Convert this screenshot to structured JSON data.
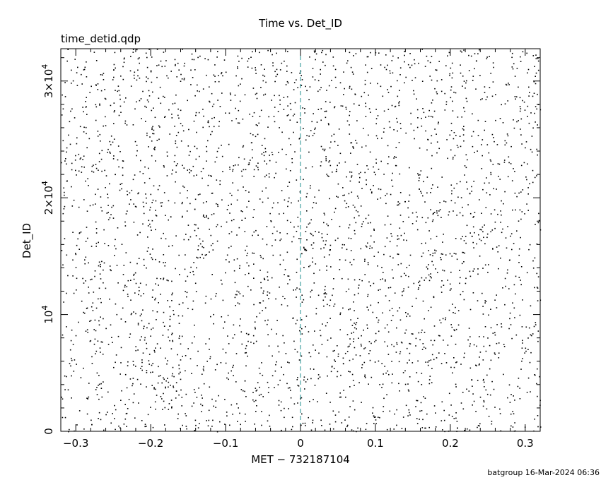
{
  "title": "Time vs. Det_ID",
  "subtitle": "time_detid.qdp",
  "footer": "batgroup 16-Mar-2024 06:36",
  "colors": {
    "points": "#000000",
    "marker_line": "#1f8f8f",
    "frame": "#000000"
  },
  "chart_data": {
    "type": "scatter",
    "title": "Time vs. Det_ID",
    "subtitle": "time_detid.qdp",
    "xlabel": "MET − 732187104",
    "ylabel": "Det_ID",
    "xlim": [
      -0.32,
      0.32
    ],
    "ylim": [
      0,
      32768
    ],
    "x_ticks": [
      -0.3,
      -0.2,
      -0.1,
      0,
      0.1,
      0.2,
      0.3
    ],
    "x_tick_labels": [
      "−0.3",
      "−0.2",
      "−0.1",
      "0",
      "0.1",
      "0.2",
      "0.3"
    ],
    "y_ticks": [
      {
        "value": 0,
        "label": "0",
        "exp": ""
      },
      {
        "value": 10000,
        "label": "10",
        "exp": "4"
      },
      {
        "value": 20000,
        "label": "2×10",
        "exp": "4"
      },
      {
        "value": 30000,
        "label": "3×10",
        "exp": "4"
      }
    ],
    "vertical_marker": {
      "x": 0,
      "style": "dashed"
    },
    "grid": false,
    "legend": "none",
    "point_density_note_count": 3200,
    "series": [
      {
        "name": "",
        "point_generation": "dense uniform scatter of single events across full x range and Det_ID 0–32768"
      }
    ]
  }
}
